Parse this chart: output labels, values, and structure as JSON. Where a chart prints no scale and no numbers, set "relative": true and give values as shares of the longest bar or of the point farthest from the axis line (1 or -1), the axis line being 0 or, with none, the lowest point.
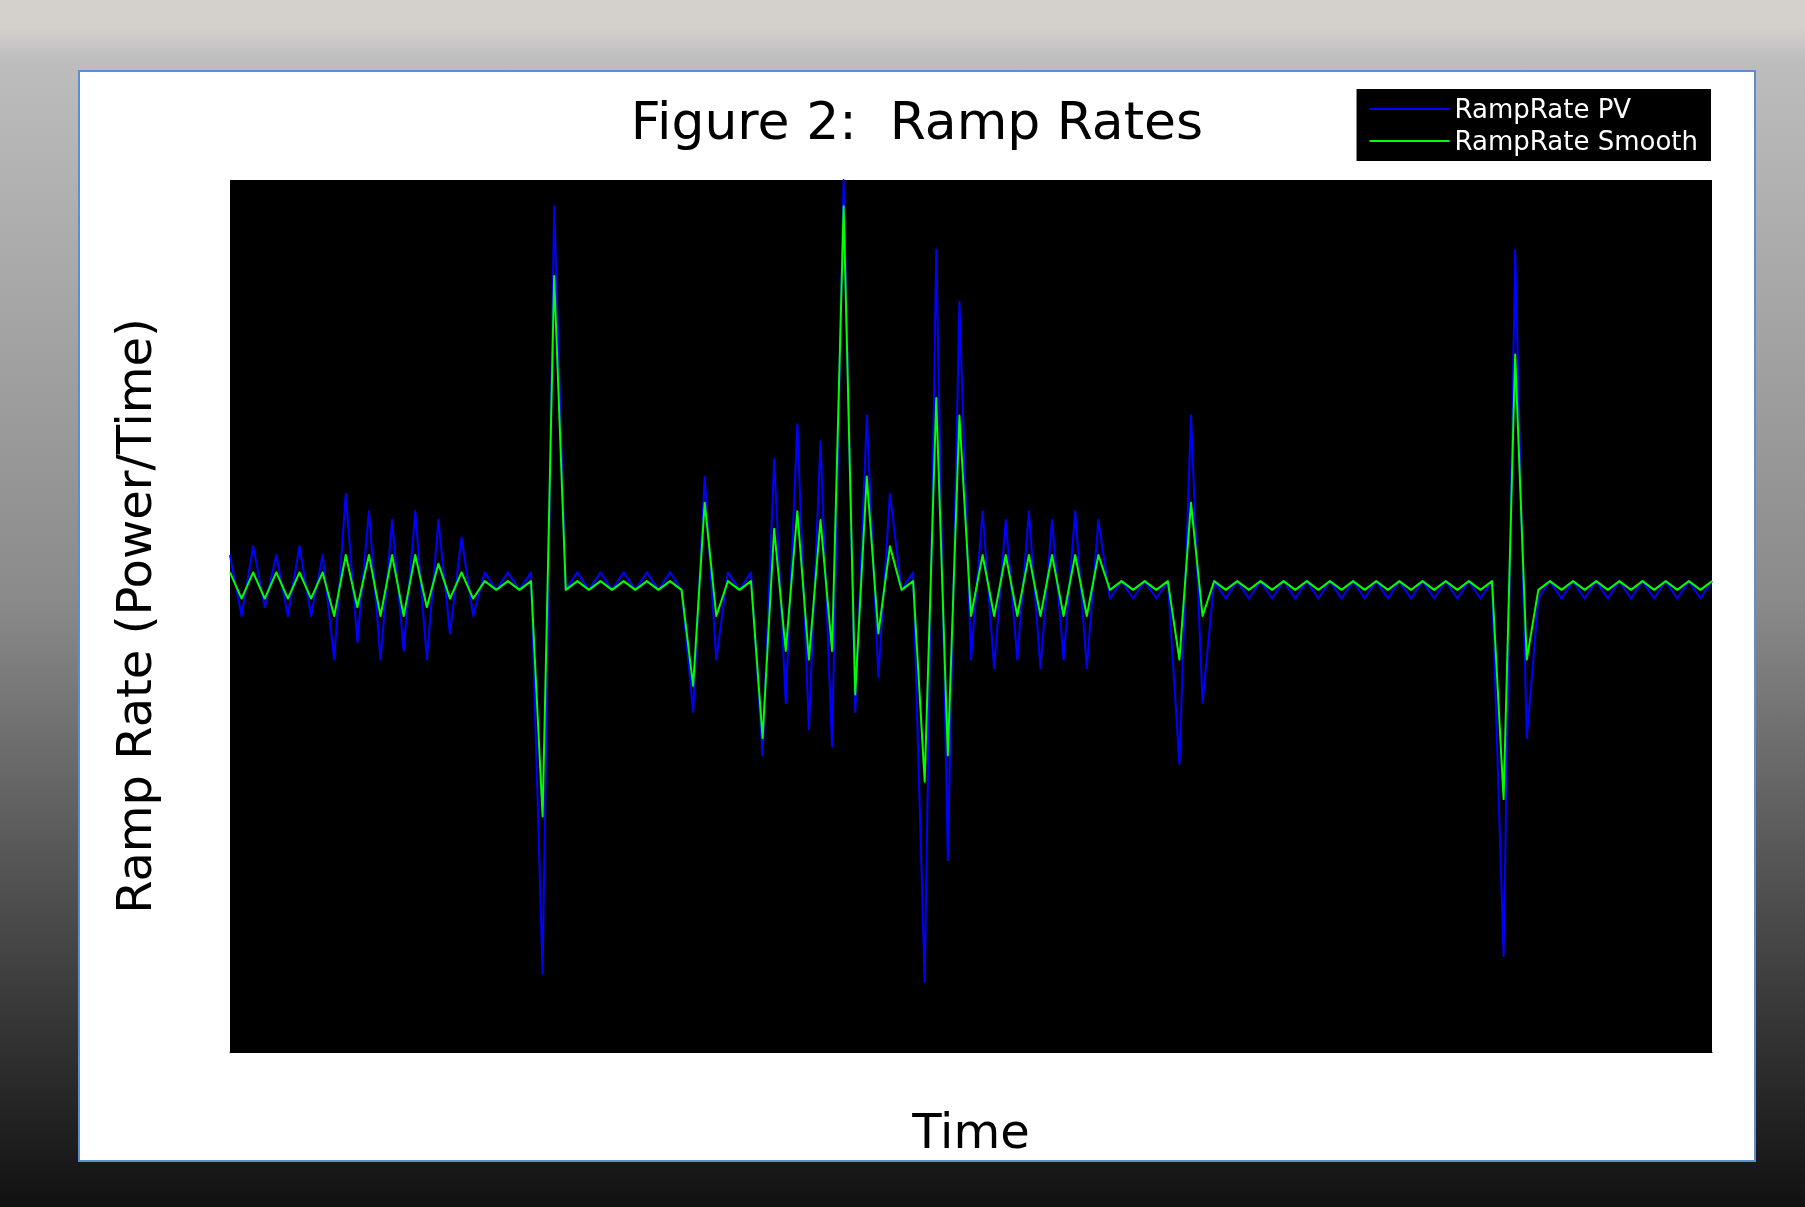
{
  "chart_data": {
    "type": "line",
    "title": "Figure 2:  Ramp Rates",
    "xlabel": "Time",
    "ylabel": "Ramp Rate (Power/Time)",
    "relative": true,
    "legend": "top right",
    "marker": "none",
    "categories": [
      null,
      null,
      null,
      null,
      null,
      null,
      null,
      null,
      null,
      null,
      null,
      null,
      null,
      null,
      null,
      null,
      null,
      null,
      null,
      null,
      null,
      null,
      null,
      null,
      null,
      null,
      null,
      null,
      null,
      null,
      null,
      null,
      null,
      null,
      null,
      null,
      null,
      null,
      null,
      null,
      null,
      null,
      null,
      null,
      null,
      null,
      null,
      null,
      null,
      null,
      null,
      null,
      null,
      null,
      null,
      null,
      null,
      null,
      null,
      null,
      null,
      null,
      null,
      null,
      null,
      null,
      null,
      null,
      null,
      null,
      null,
      null,
      null,
      null,
      null,
      null,
      null,
      null,
      null,
      null,
      null,
      null,
      null,
      null,
      null,
      null,
      null,
      null,
      null,
      null,
      null,
      null,
      null,
      null,
      null,
      null,
      null,
      null,
      null,
      null,
      null,
      null,
      null,
      null,
      null,
      null,
      null,
      null,
      null,
      null,
      null,
      null,
      null,
      null,
      null,
      null,
      null,
      null,
      null,
      null,
      null,
      null,
      null,
      null,
      null,
      null,
      null,
      null,
      null
    ],
    "series": [
      {
        "name": "RampRate PV",
        "color": "#0000ff",
        "values": [
          0.57,
          0.5,
          0.58,
          0.51,
          0.57,
          0.5,
          0.58,
          0.5,
          0.57,
          0.45,
          0.64,
          0.47,
          0.62,
          0.45,
          0.61,
          0.46,
          0.62,
          0.45,
          0.61,
          0.48,
          0.59,
          0.5,
          0.55,
          0.53,
          0.55,
          0.53,
          0.55,
          0.09,
          0.97,
          0.53,
          0.55,
          0.53,
          0.55,
          0.53,
          0.55,
          0.53,
          0.55,
          0.53,
          0.55,
          0.53,
          0.39,
          0.66,
          0.45,
          0.55,
          0.53,
          0.55,
          0.34,
          0.68,
          0.4,
          0.72,
          0.37,
          0.7,
          0.35,
          1.0,
          0.39,
          0.73,
          0.43,
          0.64,
          0.53,
          0.55,
          0.08,
          0.92,
          0.22,
          0.86,
          0.45,
          0.62,
          0.44,
          0.61,
          0.45,
          0.62,
          0.44,
          0.61,
          0.45,
          0.62,
          0.44,
          0.61,
          0.52,
          0.54,
          0.52,
          0.54,
          0.52,
          0.54,
          0.33,
          0.73,
          0.4,
          0.54,
          0.52,
          0.54,
          0.52,
          0.54,
          0.52,
          0.54,
          0.52,
          0.54,
          0.52,
          0.54,
          0.52,
          0.54,
          0.52,
          0.54,
          0.52,
          0.54,
          0.52,
          0.54,
          0.52,
          0.54,
          0.52,
          0.54,
          0.52,
          0.54,
          0.11,
          0.92,
          0.36,
          0.52,
          0.54,
          0.52,
          0.54,
          0.52,
          0.54,
          0.52,
          0.54,
          0.52,
          0.54,
          0.52,
          0.54,
          0.52,
          0.54,
          0.52,
          0.54
        ]
      },
      {
        "name": "RampRate Smooth",
        "color": "#00ff00",
        "values": [
          0.55,
          0.52,
          0.55,
          0.52,
          0.55,
          0.52,
          0.55,
          0.52,
          0.55,
          0.5,
          0.57,
          0.51,
          0.57,
          0.5,
          0.57,
          0.5,
          0.57,
          0.51,
          0.56,
          0.52,
          0.55,
          0.52,
          0.54,
          0.53,
          0.54,
          0.53,
          0.54,
          0.27,
          0.89,
          0.53,
          0.54,
          0.53,
          0.54,
          0.53,
          0.54,
          0.53,
          0.54,
          0.53,
          0.54,
          0.53,
          0.42,
          0.63,
          0.5,
          0.54,
          0.53,
          0.54,
          0.36,
          0.6,
          0.46,
          0.62,
          0.45,
          0.61,
          0.46,
          0.97,
          0.41,
          0.66,
          0.48,
          0.58,
          0.53,
          0.54,
          0.31,
          0.75,
          0.34,
          0.73,
          0.5,
          0.57,
          0.5,
          0.57,
          0.5,
          0.57,
          0.5,
          0.57,
          0.5,
          0.57,
          0.5,
          0.57,
          0.53,
          0.54,
          0.53,
          0.54,
          0.53,
          0.54,
          0.45,
          0.63,
          0.5,
          0.54,
          0.53,
          0.54,
          0.53,
          0.54,
          0.53,
          0.54,
          0.53,
          0.54,
          0.53,
          0.54,
          0.53,
          0.54,
          0.53,
          0.54,
          0.53,
          0.54,
          0.53,
          0.54,
          0.53,
          0.54,
          0.53,
          0.54,
          0.53,
          0.54,
          0.29,
          0.8,
          0.45,
          0.53,
          0.54,
          0.53,
          0.54,
          0.53,
          0.54,
          0.53,
          0.54,
          0.53,
          0.54,
          0.53,
          0.54,
          0.53,
          0.54,
          0.53,
          0.54
        ]
      }
    ]
  }
}
